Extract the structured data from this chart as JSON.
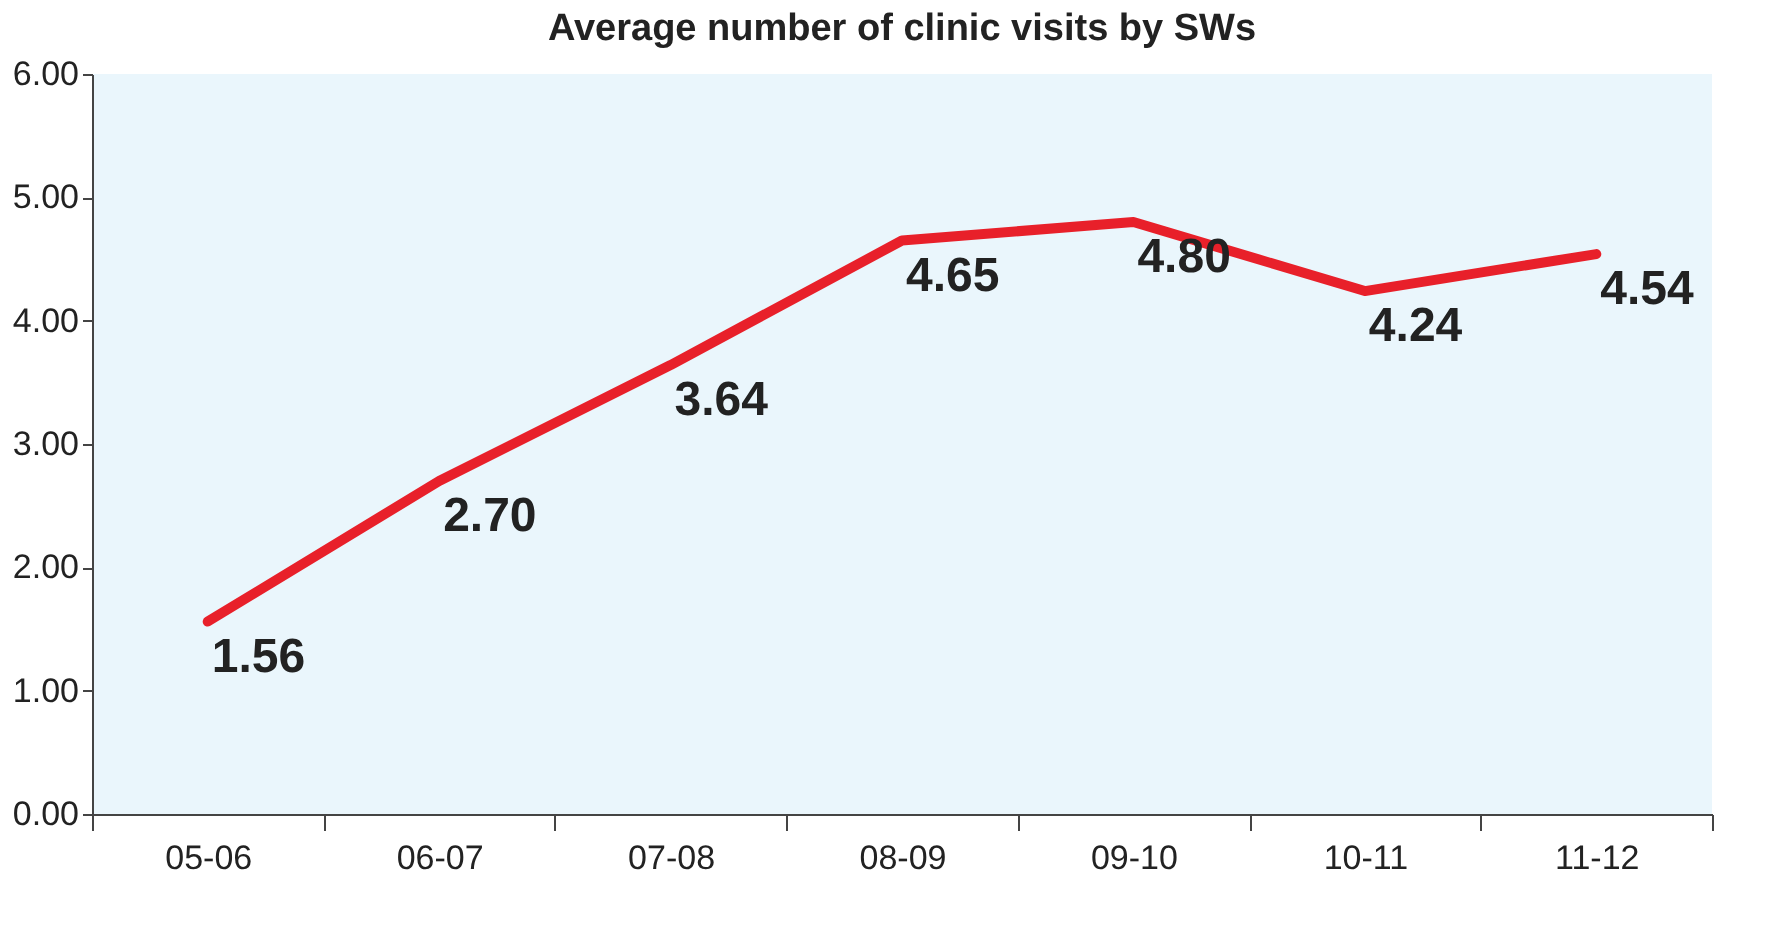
{
  "chart_data": {
    "type": "line",
    "title": "Average number of clinic visits by SWs",
    "categories": [
      "05-06",
      "06-07",
      "07-08",
      "08-09",
      "09-10",
      "10-11",
      "11-12"
    ],
    "series": [
      {
        "color": "#e8202a",
        "values": [
          1.56,
          2.7,
          3.64,
          4.65,
          4.8,
          4.24,
          4.54
        ],
        "value_labels": [
          "1.56",
          "2.70",
          "3.64",
          "4.65",
          "4.80",
          "4.24",
          "4.54"
        ]
      }
    ],
    "ylim": [
      0,
      6
    ],
    "yticks": [
      {
        "value": 0,
        "label": "0.00"
      },
      {
        "value": 1,
        "label": "1.00"
      },
      {
        "value": 2,
        "label": "2.00"
      },
      {
        "value": 3,
        "label": "3.00"
      },
      {
        "value": 4,
        "label": "4.00"
      },
      {
        "value": 5,
        "label": "5.00"
      },
      {
        "value": 6,
        "label": "6.00"
      }
    ],
    "grid": false,
    "line_style": "solid"
  }
}
